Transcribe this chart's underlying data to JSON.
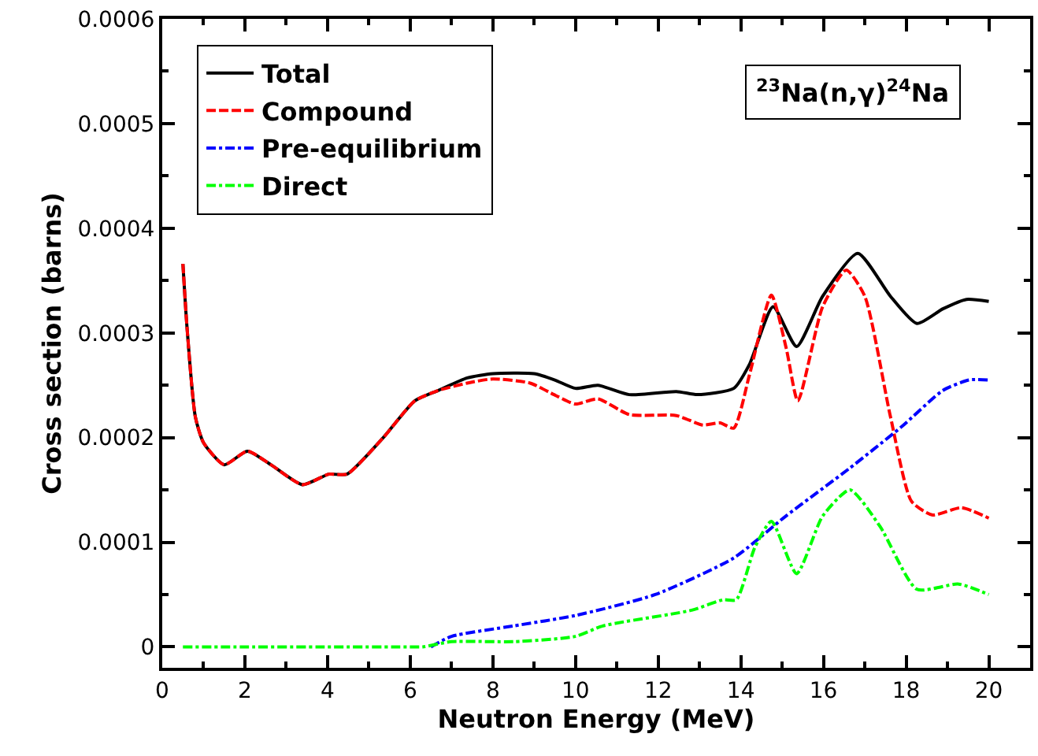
{
  "chart_data": {
    "type": "line",
    "xlabel": "Neutron Energy (MeV)",
    "ylabel": "Cross section (barns)",
    "xlim": [
      0,
      21
    ],
    "xticks": [
      0,
      2,
      4,
      6,
      8,
      10,
      12,
      14,
      16,
      18,
      20
    ],
    "ylim": [
      -2e-05,
      0.0006
    ],
    "yticks": [
      0,
      0.0001,
      0.0002,
      0.0003,
      0.0004,
      0.0005,
      0.0006
    ],
    "legend": "top left",
    "marker": "none",
    "annotations": [
      "$^{23}$Na(n,γ)$^{24}$Na"
    ],
    "series": [
      {
        "name": "Total",
        "color": "#000000",
        "line_style": "solid",
        "x": [
          0.5,
          0.6,
          0.8,
          1.0,
          1.5,
          2.06,
          2.63,
          3.39,
          4.03,
          4.47,
          5.35,
          6.11,
          6.68,
          7.38,
          8.0,
          9.0,
          9.5,
          10.0,
          10.54,
          11.3,
          12.44,
          12.95,
          13.83,
          14.21,
          14.78,
          15.35,
          15.98,
          16.83,
          17.62,
          18.26,
          18.89,
          19.46,
          20.0
        ],
        "values": [
          0.000366,
          0.000305,
          0.00022,
          0.000195,
          0.000174,
          0.000187,
          0.000174,
          0.000155,
          0.000165,
          0.000165,
          0.0002,
          0.000235,
          0.000245,
          0.000257,
          0.000261,
          0.000261,
          0.000255,
          0.000247,
          0.00025,
          0.000241,
          0.000244,
          0.000241,
          0.000247,
          0.00027,
          0.000325,
          0.000287,
          0.000335,
          0.000376,
          0.000335,
          0.000309,
          0.000323,
          0.000332,
          0.00033
        ]
      },
      {
        "name": "Compound",
        "color": "#ff0000",
        "line_style": "dashed",
        "x": [
          0.5,
          0.6,
          0.8,
          1.0,
          1.5,
          2.06,
          2.63,
          3.39,
          4.03,
          4.47,
          5.35,
          6.11,
          6.68,
          7.38,
          8.0,
          8.9,
          9.53,
          10.0,
          10.54,
          11.3,
          12.44,
          13.08,
          13.5,
          13.83,
          14.21,
          14.74,
          15.1,
          15.38,
          15.98,
          16.55,
          17.0,
          17.62,
          18.13,
          18.64,
          19.34,
          20.0
        ],
        "values": [
          0.000366,
          0.000305,
          0.00022,
          0.000195,
          0.000174,
          0.000187,
          0.000174,
          0.000155,
          0.000165,
          0.000165,
          0.0002,
          0.000235,
          0.000245,
          0.000252,
          0.000256,
          0.000252,
          0.00024,
          0.000232,
          0.000237,
          0.000222,
          0.000221,
          0.000212,
          0.000214,
          0.000209,
          0.00026,
          0.000336,
          0.000285,
          0.000235,
          0.000325,
          0.00036,
          0.000335,
          0.00022,
          0.000139,
          0.000126,
          0.000133,
          0.000123
        ]
      },
      {
        "name": "Pre-equilibrium",
        "color": "#0000ff",
        "line_style": "dashdot",
        "x": [
          6.5,
          7.0,
          8.5,
          10.0,
          11.93,
          13.83,
          15.09,
          16.61,
          17.88,
          18.89,
          19.52,
          20.0
        ],
        "values": [
          0,
          1e-05,
          2e-05,
          3e-05,
          5e-05,
          8.5e-05,
          0.000125,
          0.00017,
          0.00021,
          0.000245,
          0.000255,
          0.000255
        ]
      },
      {
        "name": "Direct",
        "color": "#00ff00",
        "line_style": "dashdot",
        "x": [
          0.5,
          2.0,
          4.0,
          6.0,
          6.3,
          7.0,
          8.5,
          10.0,
          10.66,
          12.81,
          13.57,
          13.89,
          14.34,
          14.74,
          15.35,
          15.98,
          16.64,
          17.37,
          18.26,
          19.27,
          20.0
        ],
        "values": [
          0,
          0,
          0,
          0,
          0,
          5e-06,
          5e-06,
          1e-05,
          2e-05,
          3.5e-05,
          4.5e-05,
          4.5e-05,
          9.5e-05,
          0.00012,
          7e-05,
          0.000125,
          0.00015,
          0.000115,
          5.5e-05,
          6e-05,
          5e-05
        ]
      }
    ]
  }
}
